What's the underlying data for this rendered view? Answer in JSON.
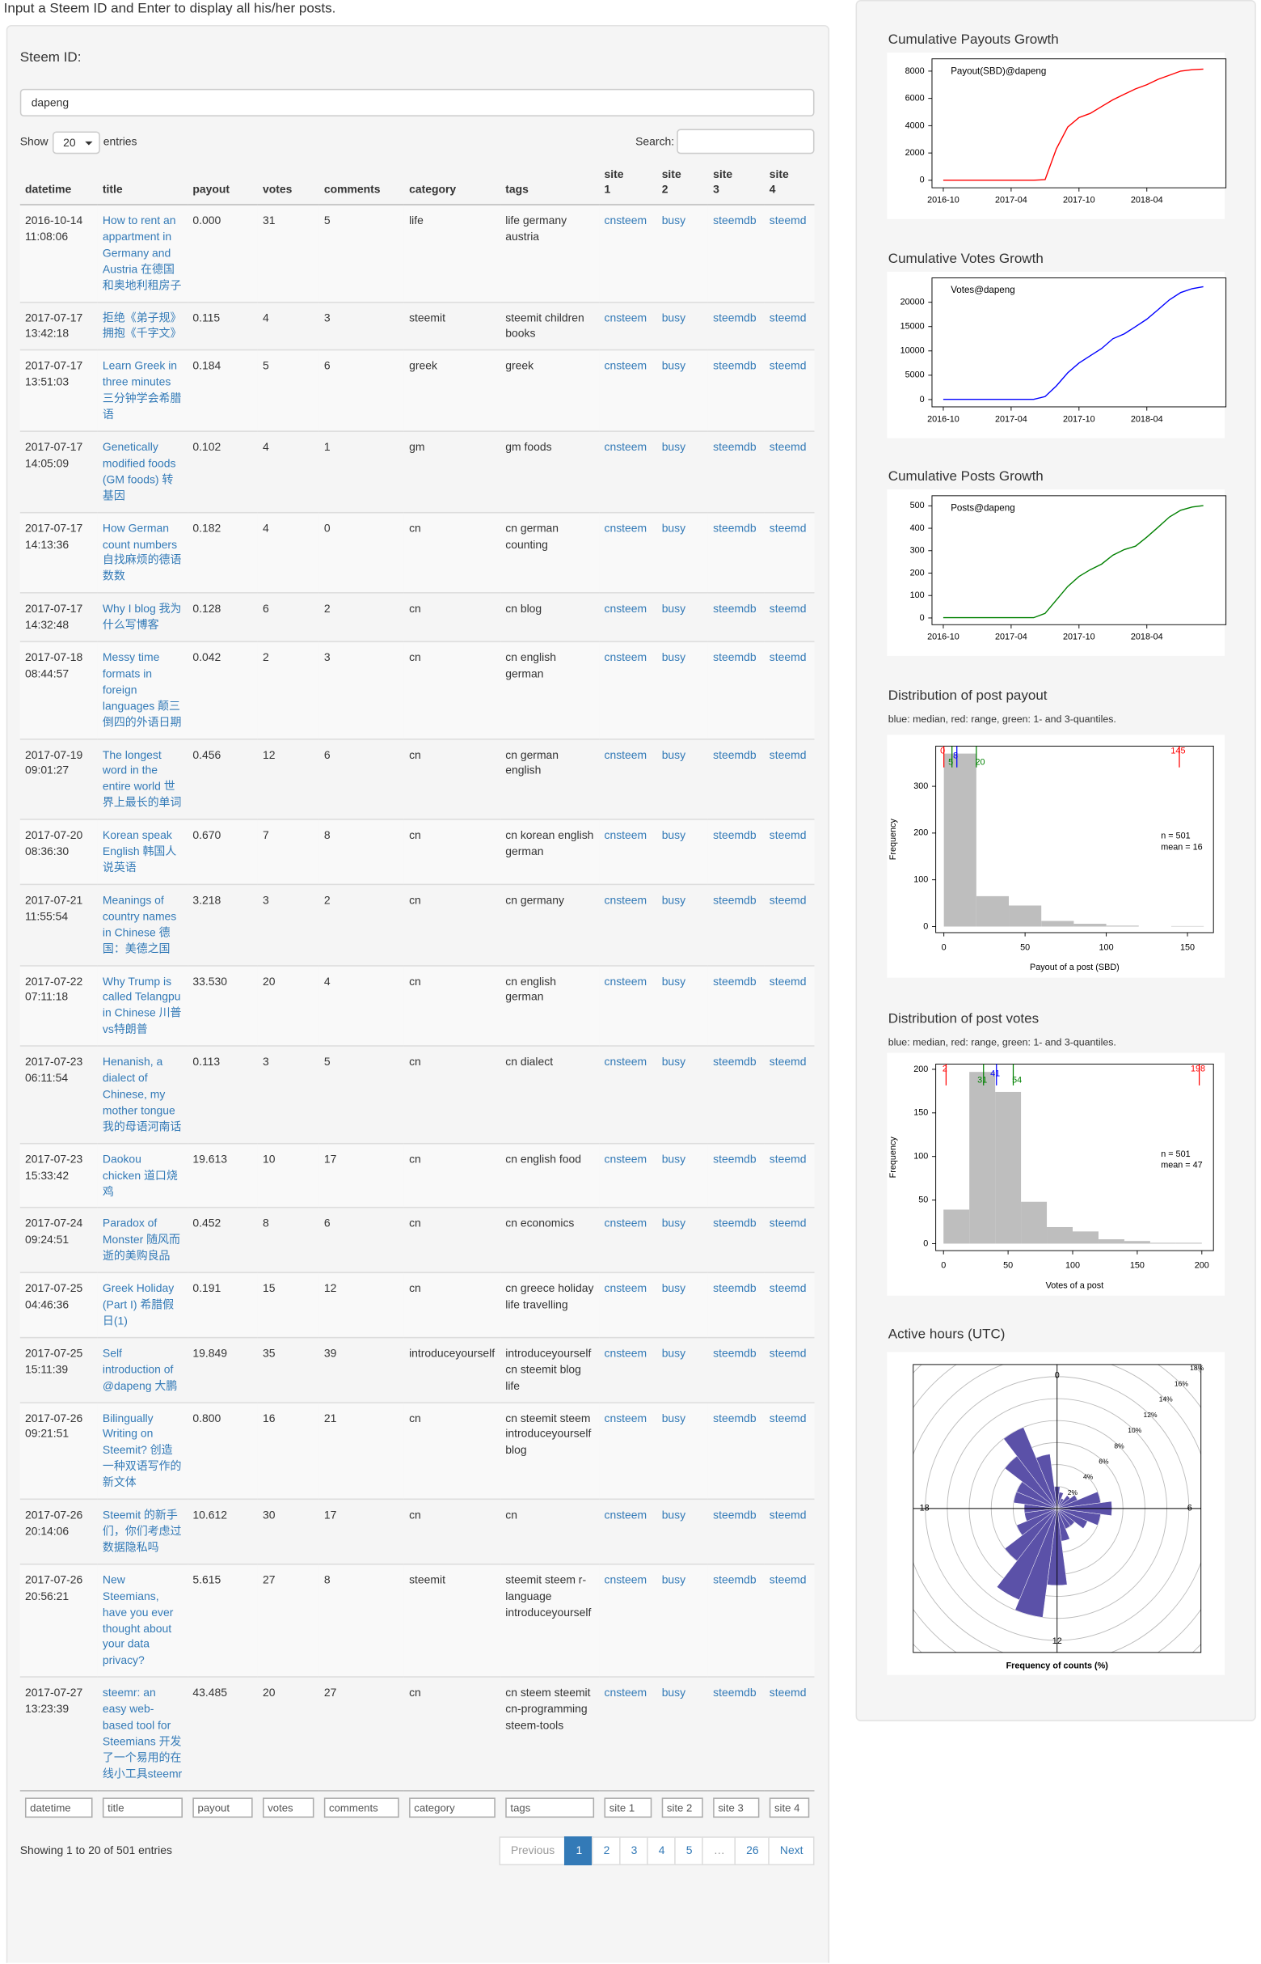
{
  "header": {
    "instruction": "Input a Steem ID and Enter to display all his/her posts."
  },
  "form": {
    "label": "Steem ID:",
    "value": "dapeng"
  },
  "controls": {
    "show": "Show",
    "length": "20",
    "entries": "entries",
    "search": "Search:"
  },
  "table": {
    "columns": [
      "datetime",
      "title",
      "payout",
      "votes",
      "comments",
      "category",
      "tags",
      "site 1",
      "site 2",
      "site 3",
      "site 4"
    ],
    "rows": [
      [
        "2016-10-14 11:08:06",
        "How to rent an appartment in Germany and Austria 在德国和奥地利租房子",
        "0.000",
        31,
        5,
        "life",
        "life germany austria",
        "cnsteem",
        "busy",
        "steemdb",
        "steemd"
      ],
      [
        "2017-07-17 13:42:18",
        "拒绝《弟子规》拥抱《千字文》",
        "0.115",
        4,
        3,
        "steemit",
        "steemit children books",
        "cnsteem",
        "busy",
        "steemdb",
        "steemd"
      ],
      [
        "2017-07-17 13:51:03",
        "Learn Greek in three minutes 三分钟学会希腊语",
        "0.184",
        5,
        6,
        "greek",
        "greek",
        "cnsteem",
        "busy",
        "steemdb",
        "steemd"
      ],
      [
        "2017-07-17 14:05:09",
        "Genetically modified foods (GM foods) 转基因",
        "0.102",
        4,
        1,
        "gm",
        "gm foods",
        "cnsteem",
        "busy",
        "steemdb",
        "steemd"
      ],
      [
        "2017-07-17 14:13:36",
        "How German count numbers 自找麻烦的德语数数",
        "0.182",
        4,
        0,
        "cn",
        "cn german counting",
        "cnsteem",
        "busy",
        "steemdb",
        "steemd"
      ],
      [
        "2017-07-17 14:32:48",
        "Why I blog 我为什么写博客",
        "0.128",
        6,
        2,
        "cn",
        "cn blog",
        "cnsteem",
        "busy",
        "steemdb",
        "steemd"
      ],
      [
        "2017-07-18 08:44:57",
        "Messy time formats in foreign languages 颠三倒四的外语日期",
        "0.042",
        2,
        3,
        "cn",
        "cn english german",
        "cnsteem",
        "busy",
        "steemdb",
        "steemd"
      ],
      [
        "2017-07-19 09:01:27",
        "The longest word in the entire world 世界上最长的单词",
        "0.456",
        12,
        6,
        "cn",
        "cn german english",
        "cnsteem",
        "busy",
        "steemdb",
        "steemd"
      ],
      [
        "2017-07-20 08:36:30",
        "Korean speak English 韩国人说英语",
        "0.670",
        7,
        8,
        "cn",
        "cn korean english german",
        "cnsteem",
        "busy",
        "steemdb",
        "steemd"
      ],
      [
        "2017-07-21 11:55:54",
        "Meanings of country names in Chinese 德国：美德之国",
        "3.218",
        3,
        2,
        "cn",
        "cn germany",
        "cnsteem",
        "busy",
        "steemdb",
        "steemd"
      ],
      [
        "2017-07-22 07:11:18",
        "Why Trump is called Telangpu in Chinese 川普vs特朗普",
        "33.530",
        20,
        4,
        "cn",
        "cn english german",
        "cnsteem",
        "busy",
        "steemdb",
        "steemd"
      ],
      [
        "2017-07-23 06:11:54",
        "Henanish, a dialect of Chinese, my mother tongue 我的母语河南话",
        "0.113",
        3,
        5,
        "cn",
        "cn dialect",
        "cnsteem",
        "busy",
        "steemdb",
        "steemd"
      ],
      [
        "2017-07-23 15:33:42",
        "Daokou chicken 道口烧鸡",
        "19.613",
        10,
        17,
        "cn",
        "cn english food",
        "cnsteem",
        "busy",
        "steemdb",
        "steemd"
      ],
      [
        "2017-07-24 09:24:51",
        "Paradox of Monster 随风而逝的美购良品",
        "0.452",
        8,
        6,
        "cn",
        "cn economics",
        "cnsteem",
        "busy",
        "steemdb",
        "steemd"
      ],
      [
        "2017-07-25 04:46:36",
        "Greek Holiday (Part I) 希腊假日(1)",
        "0.191",
        15,
        12,
        "cn",
        "cn greece holiday life travelling",
        "cnsteem",
        "busy",
        "steemdb",
        "steemd"
      ],
      [
        "2017-07-25 15:11:39",
        "Self introduction of @dapeng 大鹏",
        "19.849",
        35,
        39,
        "introduceyourself",
        "introduceyourself cn steemit blog life",
        "cnsteem",
        "busy",
        "steemdb",
        "steemd"
      ],
      [
        "2017-07-26 09:21:51",
        "Bilingually Writing on Steemit? 创造一种双语写作的新文体",
        "0.800",
        16,
        21,
        "cn",
        "cn steemit steem introduceyourself blog",
        "cnsteem",
        "busy",
        "steemdb",
        "steemd"
      ],
      [
        "2017-07-26 20:14:06",
        "Steemit 的新手们，你们考虑过数据隐私吗",
        "10.612",
        30,
        17,
        "cn",
        "cn",
        "cnsteem",
        "busy",
        "steemdb",
        "steemd"
      ],
      [
        "2017-07-26 20:56:21",
        "New Steemians, have you ever thought about your data privacy?",
        "5.615",
        27,
        8,
        "steemit",
        "steemit steem r-language introduceyourself",
        "cnsteem",
        "busy",
        "steemdb",
        "steemd"
      ],
      [
        "2017-07-27 13:23:39",
        "steemr: an easy web-based tool for Steemians 开发了一个易用的在线小工具steemr",
        "43.485",
        20,
        27,
        "cn",
        "cn steem steemit cn-programming steem-tools",
        "cnsteem",
        "busy",
        "steemdb",
        "steemd"
      ]
    ]
  },
  "info": "Showing 1 to 20 of 501 entries",
  "pagination": {
    "items": [
      "Previous",
      "1",
      "2",
      "3",
      "4",
      "5",
      "…",
      "26",
      "Next"
    ],
    "active": "1",
    "disabled": [
      "Previous",
      "…"
    ]
  },
  "chart_data": [
    {
      "type": "line",
      "title": "Cumulative Payouts Growth",
      "x": [
        "2016-10",
        "2016-11",
        "2016-12",
        "2017-01",
        "2017-02",
        "2017-03",
        "2017-04",
        "2017-05",
        "2017-06",
        "2017-07",
        "2017-08",
        "2017-09",
        "2017-10",
        "2017-11",
        "2017-12",
        "2018-01",
        "2018-02",
        "2018-03",
        "2018-04",
        "2018-05",
        "2018-06",
        "2018-07",
        "2018-08",
        "2018-09"
      ],
      "series": [
        {
          "name": "Payout(SBD)@dapeng",
          "color": "#ff0000",
          "values": [
            0,
            0,
            0,
            0,
            0,
            0,
            0,
            0,
            0,
            50,
            2300,
            3900,
            4600,
            4900,
            5400,
            5900,
            6300,
            6700,
            7000,
            7400,
            7700,
            8000,
            8100,
            8150
          ]
        }
      ],
      "xlim": [
        "2016-09",
        "2018-11"
      ],
      "xticks": [
        "2016-10",
        "2017-04",
        "2017-10",
        "2018-04"
      ],
      "ylim": [
        -550,
        8900
      ],
      "yticks": [
        0,
        2000,
        4000,
        6000,
        8000
      ]
    },
    {
      "type": "line",
      "title": "Cumulative Votes Growth",
      "x": [
        "2016-10",
        "2016-11",
        "2016-12",
        "2017-01",
        "2017-02",
        "2017-03",
        "2017-04",
        "2017-05",
        "2017-06",
        "2017-07",
        "2017-08",
        "2017-09",
        "2017-10",
        "2017-11",
        "2017-12",
        "2018-01",
        "2018-02",
        "2018-03",
        "2018-04",
        "2018-05",
        "2018-06",
        "2018-07",
        "2018-08",
        "2018-09"
      ],
      "series": [
        {
          "name": "Votes@dapeng",
          "color": "#0000ff",
          "values": [
            31,
            31,
            31,
            31,
            31,
            31,
            31,
            31,
            31,
            600,
            2800,
            5500,
            7500,
            9000,
            10500,
            12500,
            13500,
            15000,
            16500,
            18500,
            20500,
            22000,
            22800,
            23200
          ]
        }
      ],
      "xlim": [
        "2016-09",
        "2018-11"
      ],
      "xticks": [
        "2016-10",
        "2017-04",
        "2017-10",
        "2018-04"
      ],
      "ylim": [
        -1500,
        25000
      ],
      "yticks": [
        0,
        5000,
        10000,
        15000,
        20000
      ]
    },
    {
      "type": "line",
      "title": "Cumulative Posts Growth",
      "x": [
        "2016-10",
        "2016-11",
        "2016-12",
        "2017-01",
        "2017-02",
        "2017-03",
        "2017-04",
        "2017-05",
        "2017-06",
        "2017-07",
        "2017-08",
        "2017-09",
        "2017-10",
        "2017-11",
        "2017-12",
        "2018-01",
        "2018-02",
        "2018-03",
        "2018-04",
        "2018-05",
        "2018-06",
        "2018-07",
        "2018-08",
        "2018-09"
      ],
      "series": [
        {
          "name": "Posts@dapeng",
          "color": "#008000",
          "values": [
            1,
            1,
            1,
            1,
            1,
            1,
            1,
            1,
            1,
            20,
            80,
            140,
            185,
            215,
            240,
            280,
            305,
            320,
            360,
            405,
            450,
            480,
            495,
            501
          ]
        }
      ],
      "xlim": [
        "2016-09",
        "2018-11"
      ],
      "xticks": [
        "2016-10",
        "2017-04",
        "2017-10",
        "2018-04"
      ],
      "ylim": [
        -30,
        545
      ],
      "yticks": [
        0,
        100,
        200,
        300,
        400,
        500
      ]
    },
    {
      "type": "histogram",
      "title": "Distribution of post payout",
      "subtitle": "blue: median, red: range, green: 1- and 3-quantiles.",
      "xlabel": "Payout of a post (SBD)",
      "ylabel": "Frequency",
      "color": "#bebebe",
      "bins": [
        0,
        20,
        40,
        60,
        80,
        100,
        120,
        140,
        160
      ],
      "values": [
        370,
        65,
        45,
        12,
        6,
        2,
        0,
        1
      ],
      "xlim": [
        -5,
        166
      ],
      "ylim": [
        -13,
        386
      ],
      "xticks": [
        0,
        50,
        100,
        150
      ],
      "yticks": [
        0,
        100,
        200,
        300
      ],
      "markers": [
        {
          "value": 0,
          "color": "#ff0000"
        },
        {
          "value": 8,
          "color": "#0000ff"
        },
        {
          "value": 5,
          "color": "#008000"
        },
        {
          "value": 20,
          "color": "#008000"
        },
        {
          "value": 145,
          "color": "#ff0000"
        }
      ],
      "annotations": [
        "n = 501",
        "mean = 16"
      ]
    },
    {
      "type": "histogram",
      "title": "Distribution of post votes",
      "subtitle": "blue: median, red: range, green: 1- and 3-quantiles.",
      "xlabel": "Votes of a post",
      "ylabel": "Frequency",
      "color": "#bebebe",
      "bins": [
        0,
        20,
        40,
        60,
        80,
        100,
        120,
        140,
        160,
        180,
        200
      ],
      "values": [
        39,
        197,
        174,
        48,
        19,
        14,
        5,
        3,
        1,
        1
      ],
      "xlim": [
        -6,
        209
      ],
      "ylim": [
        -8,
        206
      ],
      "xticks": [
        0,
        50,
        100,
        150,
        200
      ],
      "yticks": [
        0,
        50,
        100,
        150,
        200
      ],
      "markers": [
        {
          "value": 2,
          "color": "#ff0000"
        },
        {
          "value": 31,
          "color": "#008000"
        },
        {
          "value": 41,
          "color": "#0000ff"
        },
        {
          "value": 54,
          "color": "#008000"
        },
        {
          "value": 198,
          "color": "#ff0000"
        }
      ],
      "annotations": [
        "n = 501",
        "mean = 47"
      ]
    },
    {
      "type": "polar",
      "title": "Active hours (UTC)",
      "xlabel": "Frequency of counts (%)",
      "color": "#5b51a8",
      "values": [
        2,
        1.5,
        1,
        1.5,
        2,
        4,
        5,
        4,
        3,
        2,
        2,
        3,
        7,
        10,
        9,
        6,
        4,
        3,
        3,
        4,
        4,
        6,
        8,
        5
      ],
      "angle_ticks": [
        0,
        6,
        12,
        18
      ],
      "rticks": [
        {
          "value": 2,
          "label": "2%"
        },
        {
          "value": 4,
          "label": "4%"
        },
        {
          "value": 6,
          "label": "6%"
        },
        {
          "value": 8,
          "label": "8%"
        },
        {
          "value": 10,
          "label": "10%"
        },
        {
          "value": 12,
          "label": "12%"
        },
        {
          "value": 14,
          "label": "14%"
        },
        {
          "value": 16,
          "label": "16%"
        },
        {
          "value": 18,
          "label": "18%"
        }
      ]
    }
  ]
}
